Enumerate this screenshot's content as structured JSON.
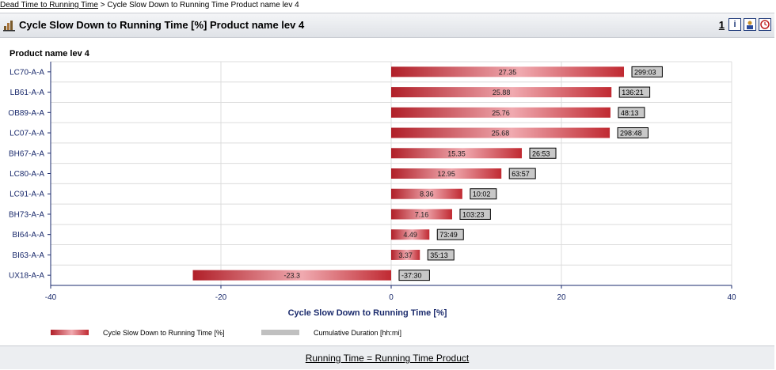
{
  "breadcrumb": {
    "link": "Dead Time to Running Time",
    "separator": ">",
    "current": "Cycle Slow Down to Running Time Product name lev 4"
  },
  "header": {
    "title": "Cycle Slow Down to Running Time [%] Product name lev 4",
    "page_number": "1",
    "icons": [
      "chart-icon",
      "info-icon",
      "user-icon",
      "clock-icon"
    ]
  },
  "chart_data": {
    "type": "bar",
    "orientation": "horizontal",
    "title": "Product name lev 4",
    "xlabel": "Cycle Slow Down to Running Time [%]",
    "xlim": [
      -40,
      40
    ],
    "xticks": [
      -40,
      -20,
      0,
      20,
      40
    ],
    "grid": true,
    "legend_position": "bottom-left",
    "categories": [
      "LC70-A-A",
      "LB61-A-A",
      "OB89-A-A",
      "LC07-A-A",
      "BH67-A-A",
      "LC80-A-A",
      "LC91-A-A",
      "BH73-A-A",
      "BI64-A-A",
      "BI63-A-A",
      "UX18-A-A"
    ],
    "series": [
      {
        "name": "Cycle Slow Down to Running Time [%]",
        "values": [
          27.35,
          25.88,
          25.76,
          25.68,
          15.35,
          12.95,
          8.36,
          7.16,
          4.49,
          3.37,
          -23.3
        ],
        "value_labels": [
          "27.35",
          "25.88",
          "25.76",
          "25.68",
          "15.35",
          "12.95",
          "8.36",
          "7.16",
          "4.49",
          "3.37",
          "-23.3"
        ],
        "color": "#b8242c"
      },
      {
        "name": "Cumulative Duration [hh:mi]",
        "values": [
          "299:03",
          "136:21",
          "48:13",
          "298:48",
          "26:53",
          "63:57",
          "10:02",
          "103:23",
          "73:49",
          "35:13",
          "-37:30"
        ],
        "color": "#c0c0c0"
      }
    ]
  },
  "footer": {
    "link": "Running Time = Running Time Product"
  }
}
